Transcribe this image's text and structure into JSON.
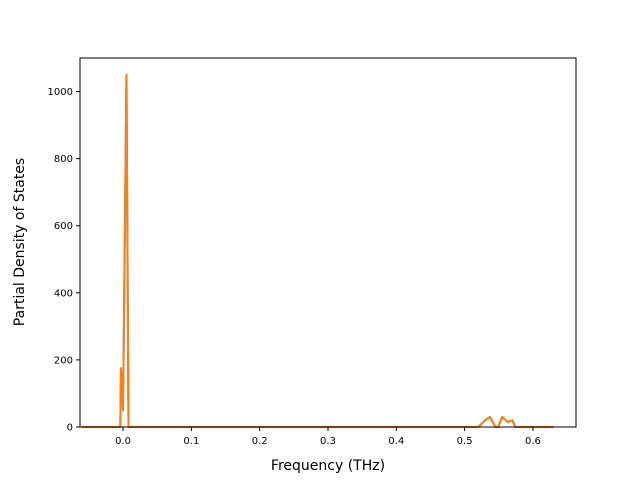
{
  "chart_data": {
    "type": "line",
    "title": "",
    "xlabel": "Frequency (THz)",
    "ylabel": "Partial Density of States",
    "xlim": [
      -0.063,
      0.663
    ],
    "ylim": [
      0,
      1100
    ],
    "x_ticks": [
      {
        "value": 0.0,
        "label": "0.0"
      },
      {
        "value": 0.1,
        "label": "0.1"
      },
      {
        "value": 0.2,
        "label": "0.2"
      },
      {
        "value": 0.3,
        "label": "0.3"
      },
      {
        "value": 0.4,
        "label": "0.4"
      },
      {
        "value": 0.5,
        "label": "0.5"
      },
      {
        "value": 0.6,
        "label": "0.6"
      }
    ],
    "y_ticks": [
      {
        "value": 0,
        "label": "0"
      },
      {
        "value": 200,
        "label": "200"
      },
      {
        "value": 400,
        "label": "400"
      },
      {
        "value": 600,
        "label": "600"
      },
      {
        "value": 800,
        "label": "800"
      },
      {
        "value": 1000,
        "label": "1000"
      }
    ],
    "grid": false,
    "legend": "none",
    "series": [
      {
        "color": "#1f77b4",
        "x": [
          -0.06,
          -0.004,
          -0.003,
          0.0,
          0.005,
          0.008,
          0.52,
          0.53,
          0.537,
          0.545,
          0.549,
          0.555,
          0.563,
          0.57,
          0.574,
          0.63
        ],
        "y": [
          0,
          0,
          175,
          50,
          1050,
          0,
          0,
          20,
          30,
          0,
          0,
          30,
          15,
          20,
          0,
          0
        ]
      },
      {
        "color": "#ff7f0e",
        "x": [
          -0.06,
          -0.004,
          -0.003,
          0.0,
          0.005,
          0.008,
          0.52,
          0.53,
          0.537,
          0.545,
          0.549,
          0.555,
          0.563,
          0.57,
          0.574,
          0.63
        ],
        "y": [
          0,
          0,
          175,
          50,
          1050,
          0,
          0,
          20,
          30,
          0,
          0,
          30,
          15,
          20,
          0,
          0
        ]
      }
    ]
  }
}
